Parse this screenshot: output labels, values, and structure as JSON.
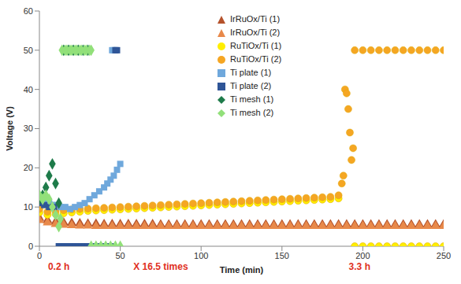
{
  "chart_data": {
    "type": "scatter",
    "x_label": "Time (min)",
    "y_label": "Voltage (V)",
    "xlim": [
      0,
      250
    ],
    "xticks": [
      0,
      50,
      100,
      150,
      200,
      250
    ],
    "ylim": [
      0,
      60
    ],
    "yticks": [
      0,
      10,
      20,
      30,
      40,
      50,
      60
    ],
    "grid": false,
    "legend": "top",
    "annotations": [
      {
        "text": "0.2 h",
        "x": 12
      },
      {
        "text": "X 16.5 times",
        "x": 75
      },
      {
        "text": "3.3 h",
        "x": 198
      }
    ],
    "series": [
      {
        "name": "IrRuOx/Ti (1)",
        "color": "#B5522B",
        "marker": "triangle",
        "x": [
          0,
          5,
          10,
          15,
          20,
          25,
          30,
          35,
          40,
          45,
          50,
          55,
          60,
          65,
          70,
          75,
          80,
          85,
          90,
          95,
          100,
          105,
          110,
          115,
          120,
          125,
          130,
          135,
          140,
          145,
          150,
          155,
          160,
          165,
          170,
          175,
          180,
          185,
          190,
          195,
          200,
          205,
          210,
          215,
          220,
          225,
          230,
          235,
          240,
          245,
          250
        ],
        "values": [
          7.2,
          6.6,
          6.2,
          6.0,
          5.9,
          5.8,
          5.7,
          5.7,
          5.6,
          5.6,
          5.6,
          5.6,
          5.6,
          5.6,
          5.6,
          5.5,
          5.5,
          5.5,
          5.5,
          5.5,
          5.5,
          5.5,
          5.5,
          5.5,
          5.5,
          5.5,
          5.5,
          5.5,
          5.5,
          5.5,
          5.5,
          5.5,
          5.5,
          5.5,
          5.5,
          5.5,
          5.5,
          5.5,
          5.5,
          5.5,
          5.5,
          5.5,
          5.5,
          5.5,
          5.5,
          5.5,
          5.5,
          5.5,
          5.5,
          5.5,
          5.5
        ]
      },
      {
        "name": "IrRuOx/Ti (2)",
        "color": "#E8894A",
        "marker": "triangle",
        "x": [
          0,
          5,
          10,
          15,
          20,
          25,
          30,
          35,
          40,
          45,
          50,
          55,
          60,
          65,
          70,
          75,
          80,
          85,
          90,
          95,
          100,
          105,
          110,
          115,
          120,
          125,
          130,
          135,
          140,
          145,
          150,
          155,
          160,
          165,
          170,
          175,
          180,
          185,
          190,
          195,
          200,
          205,
          210,
          215,
          220,
          225,
          230,
          235,
          240,
          245,
          250
        ],
        "values": [
          6.6,
          6.0,
          5.6,
          5.4,
          5.3,
          5.2,
          5.2,
          5.1,
          5.1,
          5.1,
          5.1,
          5.1,
          5.1,
          5.1,
          5.1,
          5.1,
          5.1,
          5.1,
          5.1,
          5.1,
          5.1,
          5.1,
          5.1,
          5.1,
          5.1,
          5.1,
          5.1,
          5.1,
          5.1,
          5.1,
          5.1,
          5.1,
          5.1,
          5.1,
          5.1,
          5.1,
          5.1,
          5.1,
          5.1,
          5.1,
          5.1,
          5.1,
          5.1,
          5.1,
          5.1,
          5.1,
          5.1,
          5.1,
          5.1,
          5.1,
          5.1
        ]
      },
      {
        "name": "RuTiOx/Ti (1)",
        "color": "#FFEE00",
        "marker": "circle",
        "x": [
          0,
          5,
          10,
          15,
          20,
          25,
          30,
          35,
          40,
          45,
          50,
          55,
          60,
          65,
          70,
          75,
          80,
          85,
          90,
          95,
          100,
          105,
          110,
          115,
          120,
          125,
          130,
          135,
          140,
          145,
          150,
          155,
          160,
          165,
          170,
          175,
          180,
          185,
          195,
          200,
          205,
          210,
          215,
          220,
          225,
          230,
          235,
          240,
          245,
          250
        ],
        "values": [
          8.6,
          8.0,
          8.2,
          8.4,
          8.6,
          8.8,
          9.0,
          9.1,
          9.2,
          9.3,
          9.4,
          9.5,
          9.6,
          9.7,
          9.8,
          9.9,
          10.0,
          10.1,
          10.2,
          10.3,
          10.4,
          10.5,
          10.6,
          10.7,
          10.8,
          10.9,
          11.0,
          11.1,
          11.2,
          11.3,
          11.4,
          11.5,
          11.6,
          11.7,
          11.8,
          11.9,
          12.0,
          12.2,
          0,
          0,
          0,
          0,
          0,
          0,
          0,
          0,
          0,
          0,
          0,
          0
        ]
      },
      {
        "name": "RuTiOx/Ti (2)",
        "color": "#F5A623",
        "marker": "circle",
        "x": [
          0,
          5,
          10,
          15,
          20,
          25,
          30,
          35,
          40,
          45,
          50,
          55,
          60,
          65,
          70,
          75,
          80,
          85,
          90,
          95,
          100,
          105,
          110,
          115,
          120,
          125,
          130,
          135,
          140,
          145,
          150,
          155,
          160,
          165,
          170,
          175,
          180,
          185,
          187,
          188,
          189,
          190,
          191,
          192,
          193,
          194,
          195,
          200,
          205,
          210,
          215,
          220,
          225,
          230,
          235,
          240,
          245,
          250
        ],
        "values": [
          9.5,
          8.8,
          9.0,
          9.2,
          9.4,
          9.5,
          9.6,
          9.7,
          9.8,
          9.9,
          10.0,
          10.1,
          10.2,
          10.3,
          10.4,
          10.5,
          10.6,
          10.7,
          10.8,
          10.9,
          11.0,
          11.1,
          11.2,
          11.3,
          11.4,
          11.5,
          11.6,
          11.7,
          11.8,
          11.9,
          12.0,
          12.1,
          12.2,
          12.3,
          12.4,
          12.5,
          12.6,
          13.0,
          16,
          18,
          40,
          39,
          35,
          29,
          22,
          25,
          50,
          50,
          50,
          50,
          50,
          50,
          50,
          50,
          50,
          50,
          50,
          50
        ]
      },
      {
        "name": "Ti plate (1)",
        "color": "#6FA8DC",
        "marker": "square",
        "x": [
          0,
          2,
          4,
          6,
          8,
          10,
          13,
          16,
          19,
          22,
          25,
          28,
          31,
          34,
          37,
          40,
          42,
          44,
          46,
          48,
          50,
          45,
          46
        ],
        "values": [
          12.5,
          12,
          11.5,
          11,
          10.5,
          10.5,
          10,
          10,
          9.5,
          10,
          10.5,
          11,
          12,
          13,
          14,
          15,
          16,
          17,
          18,
          19.5,
          21,
          50,
          50
        ]
      },
      {
        "name": "Ti plate (2)",
        "color": "#2F5597",
        "marker": "square",
        "x": [
          0,
          3,
          6,
          9,
          12,
          14,
          16,
          18,
          20,
          22,
          24,
          26,
          28,
          30,
          32,
          34,
          36,
          38,
          40,
          42,
          44,
          47,
          48
        ],
        "values": [
          11,
          10.5,
          10,
          10,
          0,
          0,
          0,
          0,
          0,
          0,
          0,
          0,
          0,
          0,
          0,
          0,
          0,
          0,
          0,
          0,
          0,
          50,
          50
        ]
      },
      {
        "name": "Ti mesh (1)",
        "color": "#1E7B4A",
        "marker": "diamond",
        "x": [
          0,
          2,
          4,
          6,
          8,
          10,
          12,
          15,
          18,
          21,
          24,
          27,
          30
        ],
        "values": [
          12,
          13,
          15,
          18,
          21,
          16,
          11,
          50,
          50,
          50,
          50,
          50,
          50
        ]
      },
      {
        "name": "Ti mesh (2)",
        "color": "#92E07A",
        "marker": "diamond",
        "x": [
          0,
          2,
          4,
          6,
          8,
          10,
          12,
          13,
          14,
          16,
          17,
          19,
          20,
          22,
          23,
          25,
          26,
          28,
          29,
          31,
          32,
          32,
          35,
          38,
          41,
          44,
          47,
          50
        ],
        "values": [
          13,
          12,
          13,
          12,
          10,
          8,
          5,
          7,
          50,
          50,
          50,
          50,
          50,
          50,
          50,
          50,
          50,
          50,
          50,
          50,
          50,
          0,
          0,
          0,
          0,
          0,
          0,
          0
        ]
      }
    ]
  }
}
